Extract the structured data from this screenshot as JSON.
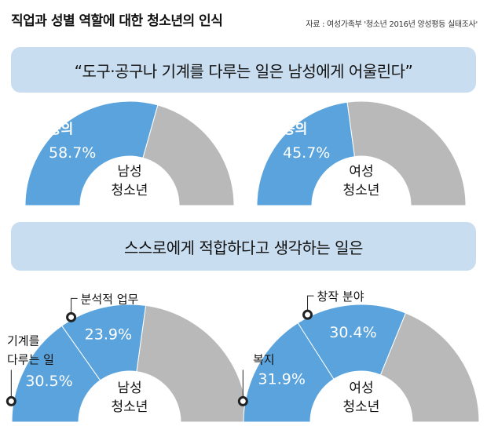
{
  "title": "직업과 성별 역할에 대한 청소년의 인식",
  "source": "자료 : 여성가족부 '청소년 2016년 양성평등 실태조사'",
  "colors": {
    "agree": "#5aa3dc",
    "disagree": "#b9b9b9",
    "banner": "#c9ddf0",
    "marker": "#222222"
  },
  "banner1": "“도구·공구나 기계를 다루는 일은 남성에게 어울린다”",
  "banner2": "스스로에게 적합하다고 생각하는 일은",
  "chart_data": [
    {
      "type": "pie",
      "group": "남성 청소년",
      "center_label": [
        "남성",
        "청소년"
      ],
      "slices": [
        {
          "name": "동의",
          "value": 58.7,
          "value_label": "58.7%"
        },
        {
          "name": "",
          "value": 41.3
        }
      ]
    },
    {
      "type": "pie",
      "group": "여성 청소년",
      "center_label": [
        "여성",
        "청소년"
      ],
      "slices": [
        {
          "name": "동의",
          "value": 45.7,
          "value_label": "45.7%"
        },
        {
          "name": "",
          "value": 54.3
        }
      ]
    },
    {
      "type": "pie",
      "group": "남성 청소년",
      "center_label": [
        "남성",
        "청소년"
      ],
      "slices": [
        {
          "name": "기계를 다루는 일",
          "name_lines": [
            "기계를",
            "다루는 일"
          ],
          "value": 30.5,
          "value_label": "30.5%"
        },
        {
          "name": "분석적 업무",
          "name_lines": [
            "분석적 업무"
          ],
          "value": 23.9,
          "value_label": "23.9%"
        },
        {
          "name": "",
          "value": 45.6
        }
      ]
    },
    {
      "type": "pie",
      "group": "여성 청소년",
      "center_label": [
        "여성",
        "청소년"
      ],
      "slices": [
        {
          "name": "복지",
          "name_lines": [
            "복지"
          ],
          "value": 31.9,
          "value_label": "31.9%"
        },
        {
          "name": "창작 분야",
          "name_lines": [
            "창작 분야"
          ],
          "value": 30.4,
          "value_label": "30.4%"
        },
        {
          "name": "",
          "value": 37.7
        }
      ]
    }
  ]
}
